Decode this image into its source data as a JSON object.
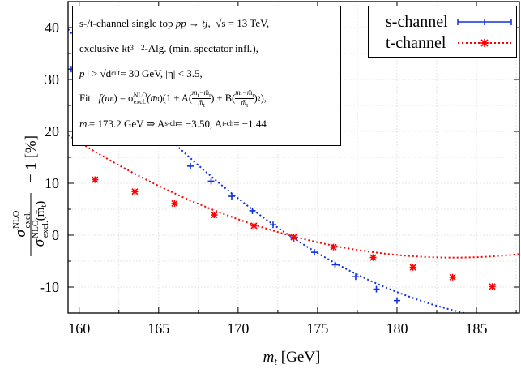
{
  "chart_data": {
    "type": "scatter",
    "xlabel": "m_t [GeV]",
    "ylabel": "σ^NLO_excl. / σ^NLO_excl.(m̄_t) − 1 [%]",
    "xlim": [
      159.3,
      187.7
    ],
    "ylim": [
      -15,
      45
    ],
    "x_ticks": [
      160,
      165,
      170,
      175,
      180,
      185
    ],
    "y_ticks": [
      -10,
      0,
      10,
      20,
      30,
      40
    ],
    "grid": true,
    "legend_position": "top-right",
    "series": [
      {
        "name": "s-channel",
        "color": "#1030e0",
        "marker": "plus",
        "line_style": "errorbar",
        "x": [
          159.5,
          167.0,
          168.3,
          169.6,
          170.9,
          172.2,
          173.5,
          174.8,
          176.1,
          177.4,
          178.7,
          180.0
        ],
        "y": [
          32.0,
          13.3,
          10.4,
          7.5,
          4.7,
          2.0,
          -0.6,
          -3.3,
          -5.7,
          -8.0,
          -10.4,
          -12.6
        ],
        "fit": {
          "reference_mt": 173.2,
          "A": -3.5,
          "B": 0.18
        }
      },
      {
        "name": "t-channel",
        "color": "#ff0000",
        "marker": "star",
        "line_style": "dotted",
        "x": [
          161.0,
          163.5,
          166.0,
          168.5,
          171.0,
          173.5,
          176.0,
          178.5,
          181.0,
          183.5,
          186.0
        ],
        "y": [
          10.7,
          8.4,
          6.1,
          3.9,
          1.8,
          -0.4,
          -2.3,
          -4.3,
          -6.2,
          -8.1,
          -9.9
        ],
        "fit": {
          "reference_mt": 173.2,
          "A": -1.44,
          "B": 0.12
        }
      }
    ]
  },
  "info": {
    "line1_prefix": "s-/t-channel single top  ",
    "line1_process": "pp → tj,",
    "line1_energy": "√s = 13 TeV,",
    "line2": "exclusive kt",
    "line2_sub": "3→2",
    "line2_rest": "-Alg. (min. spectator infl.),",
    "line3": "p",
    "line3_sup": "⊥",
    "line3_rest": " > √d",
    "line3_sub": "cut",
    "line3_end": " = 30 GeV,  |η| < 3.5,",
    "line4_label": "Fit:",
    "line4_formula": "f(m",
    "line4_formula_sub": "t",
    "line4_formula_rest": ") = σ",
    "line4_sup": "NLO",
    "line4_sub": "excl.",
    "line4_tail": "(m̄",
    "line4_tail_sub": "t",
    "line4_tail_rest": ")(1 + A(",
    "line4_frac1_num": "m",
    "line4_frac1_num_sub": "t",
    "line4_frac1_num_rest": "−m̄",
    "line4_frac1_num_sub2": "t",
    "line4_frac1_den": "m̄",
    "line4_frac1_den_sub": "t",
    "line4_mid": ") + B(",
    "line4_frac2_num": "m",
    "line4_frac2_num_sub": "t",
    "line4_frac2_num_rest": "−m̄",
    "line4_frac2_num_sub2": "t",
    "line4_frac2_den": "m̄",
    "line4_frac2_den_sub": "t",
    "line4_end": ")",
    "line4_sq": "2",
    "line4_close": "),",
    "line5_a": "m̄",
    "line5_a_sub": "t",
    "line5_b": " = 173.2 GeV  ⇒  A",
    "line5_b_sub": "s-ch",
    "line5_c": " = −3.50,  A",
    "line5_c_sub": "t-ch",
    "line5_d": " = −1.44"
  },
  "axis_text": {
    "x_main": "m",
    "x_sub": "t",
    "x_unit": " [GeV]",
    "y_num": "σ",
    "y_num_sup": "NLO",
    "y_num_sub": "excl.",
    "y_den": "σ",
    "y_den_sup": "NLO",
    "y_den_sub": "excl.",
    "y_den_arg": "(m̄",
    "y_den_arg_sub": "t",
    "y_den_arg_end": ")",
    "y_tail": " − 1 [%]"
  }
}
